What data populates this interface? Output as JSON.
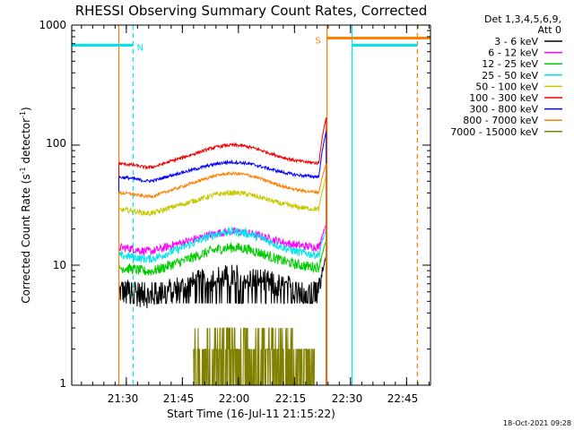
{
  "chart_data": {
    "type": "line",
    "title": "RHESSI Observing Summary Count Rates, Corrected",
    "xlabel": "Start Time (16-Jul-11 21:15:22)",
    "ylabel": "Corrected Count Rate (s",
    "ylabel_sup1": "-1",
    "ylabel_mid": " detector",
    "ylabel_sup2": "-1",
    "ylabel_end": ")",
    "yscale": "log",
    "ylim": [
      1,
      1000
    ],
    "ytick_labels": [
      "1",
      "10",
      "100",
      "1000"
    ],
    "xlim_min": [
      0,
      96
    ],
    "xtick_values_min": [
      14.6,
      29.6,
      44.6,
      59.6,
      74.6,
      89.6
    ],
    "xtick_labels": [
      "21:30",
      "21:45",
      "22:00",
      "22:15",
      "22:30",
      "22:45"
    ],
    "legend_header": [
      "Det 1,3,4,5,6,9,",
      "Att 0"
    ],
    "legend_location": "top-right outside",
    "footer": "18-Oct-2021 09:28",
    "series": [
      {
        "name": "3 - 6 keV",
        "color": "#000000",
        "base": 6,
        "peak": 8,
        "noise": 0.25,
        "rise_to": 12
      },
      {
        "name": "6 - 12 keV",
        "color": "#ff00ff",
        "base": 14,
        "peak": 19,
        "noise": 0.08,
        "rise_to": 22
      },
      {
        "name": "12 - 25 keV",
        "color": "#00cc00",
        "base": 9.5,
        "peak": 14,
        "noise": 0.1,
        "rise_to": 16
      },
      {
        "name": "25 - 50 keV",
        "color": "#00e5ee",
        "base": 12,
        "peak": 19,
        "noise": 0.08,
        "rise_to": 20
      },
      {
        "name": "50 - 100 keV",
        "color": "#c8c800",
        "base": 29,
        "peak": 40,
        "noise": 0.05,
        "rise_to": 55
      },
      {
        "name": "100 - 300 keV",
        "color": "#ee0000",
        "base": 70,
        "peak": 100,
        "noise": 0.03,
        "rise_to": 170
      },
      {
        "name": "300 - 800 keV",
        "color": "#0000ff",
        "base": 54,
        "peak": 72,
        "noise": 0.03,
        "rise_to": 130
      },
      {
        "name": "800 - 7000 keV",
        "color": "#ff7f00",
        "base": 40,
        "peak": 58,
        "noise": 0.03,
        "rise_to": 70
      },
      {
        "name": "7000 - 15000 keV",
        "color": "#808000",
        "base": 2,
        "peak": 3,
        "noise": 0,
        "rise_to": 2
      }
    ],
    "data_interval_min": [
      12.6,
      68.1
    ],
    "flags": [
      {
        "label": "N",
        "color": "#00e5ee",
        "start_min": 0,
        "end_min": 16.4,
        "level": 680
      },
      {
        "label": "S",
        "color": "#ff7f00",
        "start_min": 68.3,
        "end_min": 96,
        "level": 780
      },
      {
        "label": "",
        "color": "#00e5ee",
        "start_min": 75,
        "end_min": 92.5,
        "level": 680
      }
    ],
    "night_lines": {
      "solid_min": [
        0,
        75
      ],
      "dashed_min": [
        16.4,
        92.5
      ]
    },
    "saa_lines": {
      "solid_min": [
        12.6,
        68.3
      ],
      "dashed_min": [
        92.5
      ]
    }
  }
}
